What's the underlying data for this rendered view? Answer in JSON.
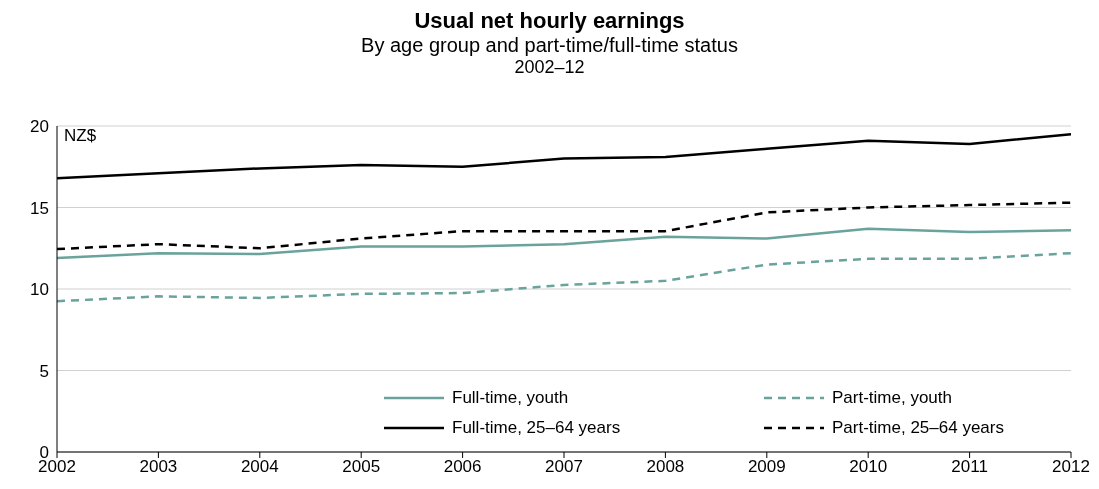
{
  "chart_data": {
    "type": "line",
    "title": "Usual net hourly earnings",
    "subtitle": "By age group and part-time/full-time status",
    "annotations": [
      "2002–12"
    ],
    "ylabel": "NZ$",
    "x": [
      2002,
      2003,
      2004,
      2005,
      2006,
      2007,
      2008,
      2009,
      2010,
      2011,
      2012
    ],
    "xlim": [
      2002,
      2012
    ],
    "xticks": [
      2002,
      2003,
      2004,
      2005,
      2006,
      2007,
      2008,
      2009,
      2010,
      2011,
      2012
    ],
    "ylim": [
      0,
      20
    ],
    "yticks": [
      0,
      5,
      10,
      15,
      20
    ],
    "grid": "y",
    "legend": "bottom right",
    "marker": "none",
    "series": [
      {
        "name": "Full-time, youth",
        "color": "#6aa39b",
        "line_style": "solid",
        "values": [
          11.9,
          12.2,
          12.15,
          12.6,
          12.6,
          12.75,
          13.2,
          13.1,
          13.7,
          13.5,
          13.6
        ]
      },
      {
        "name": "Part-time, youth",
        "color": "#6aa39b",
        "line_style": "dashed",
        "values": [
          9.25,
          9.55,
          9.45,
          9.7,
          9.75,
          10.25,
          10.5,
          11.5,
          11.85,
          11.85,
          12.2
        ]
      },
      {
        "name": "Full-time, 25–64 years",
        "color": "#000000",
        "line_style": "solid",
        "values": [
          16.8,
          17.1,
          17.4,
          17.6,
          17.5,
          18.0,
          18.1,
          18.6,
          19.1,
          18.9,
          19.5
        ]
      },
      {
        "name": "Part-time, 25–64 years",
        "color": "#000000",
        "line_style": "dashed",
        "values": [
          12.45,
          12.75,
          12.5,
          13.1,
          13.55,
          13.55,
          13.55,
          14.7,
          15.0,
          15.15,
          15.3
        ]
      }
    ]
  }
}
